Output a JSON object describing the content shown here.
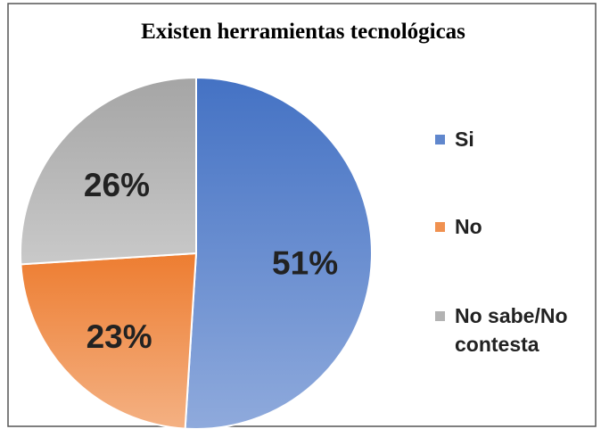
{
  "chart_data": {
    "type": "pie",
    "title": "Existen herramientas tecnológicas",
    "categories": [
      "Si",
      "No",
      "No sabe/No contesta"
    ],
    "values": [
      51,
      23,
      26
    ],
    "value_labels": [
      "51%",
      "23%",
      "26%"
    ],
    "colors": [
      "#4472c4",
      "#ed7d31",
      "#a5a5a5"
    ],
    "legend": "right"
  }
}
